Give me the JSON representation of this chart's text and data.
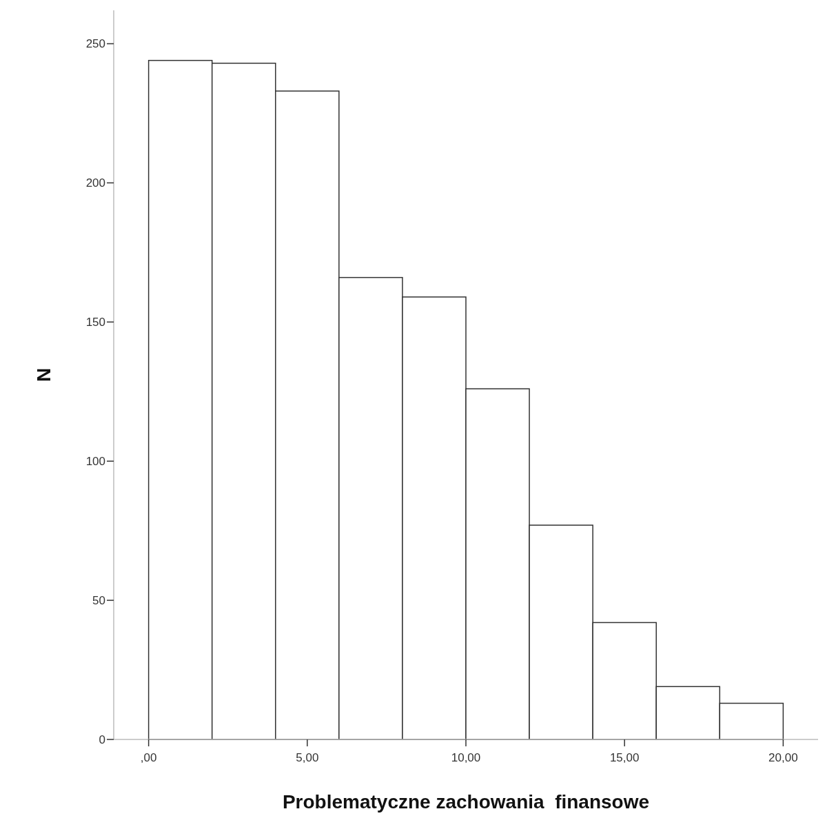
{
  "chart_data": {
    "type": "histogram",
    "xlabel": "Problematyczne zachowania  finansowe",
    "ylabel": "N",
    "bins": [
      0,
      2,
      4,
      6,
      8,
      10,
      12,
      14,
      16,
      18,
      20
    ],
    "values": [
      244,
      243,
      233,
      166,
      159,
      126,
      77,
      42,
      19,
      13
    ],
    "color": "#ffffff",
    "xlim": [
      -1.1,
      21.1
    ],
    "ylim": [
      0,
      262
    ],
    "xticks": [
      {
        "value": 0,
        "label": ",00"
      },
      {
        "value": 5,
        "label": "5,00"
      },
      {
        "value": 10,
        "label": "10,00"
      },
      {
        "value": 15,
        "label": "15,00"
      },
      {
        "value": 20,
        "label": "20,00"
      }
    ],
    "yticks": [
      0,
      50,
      100,
      150,
      200,
      250
    ],
    "grid": false
  }
}
